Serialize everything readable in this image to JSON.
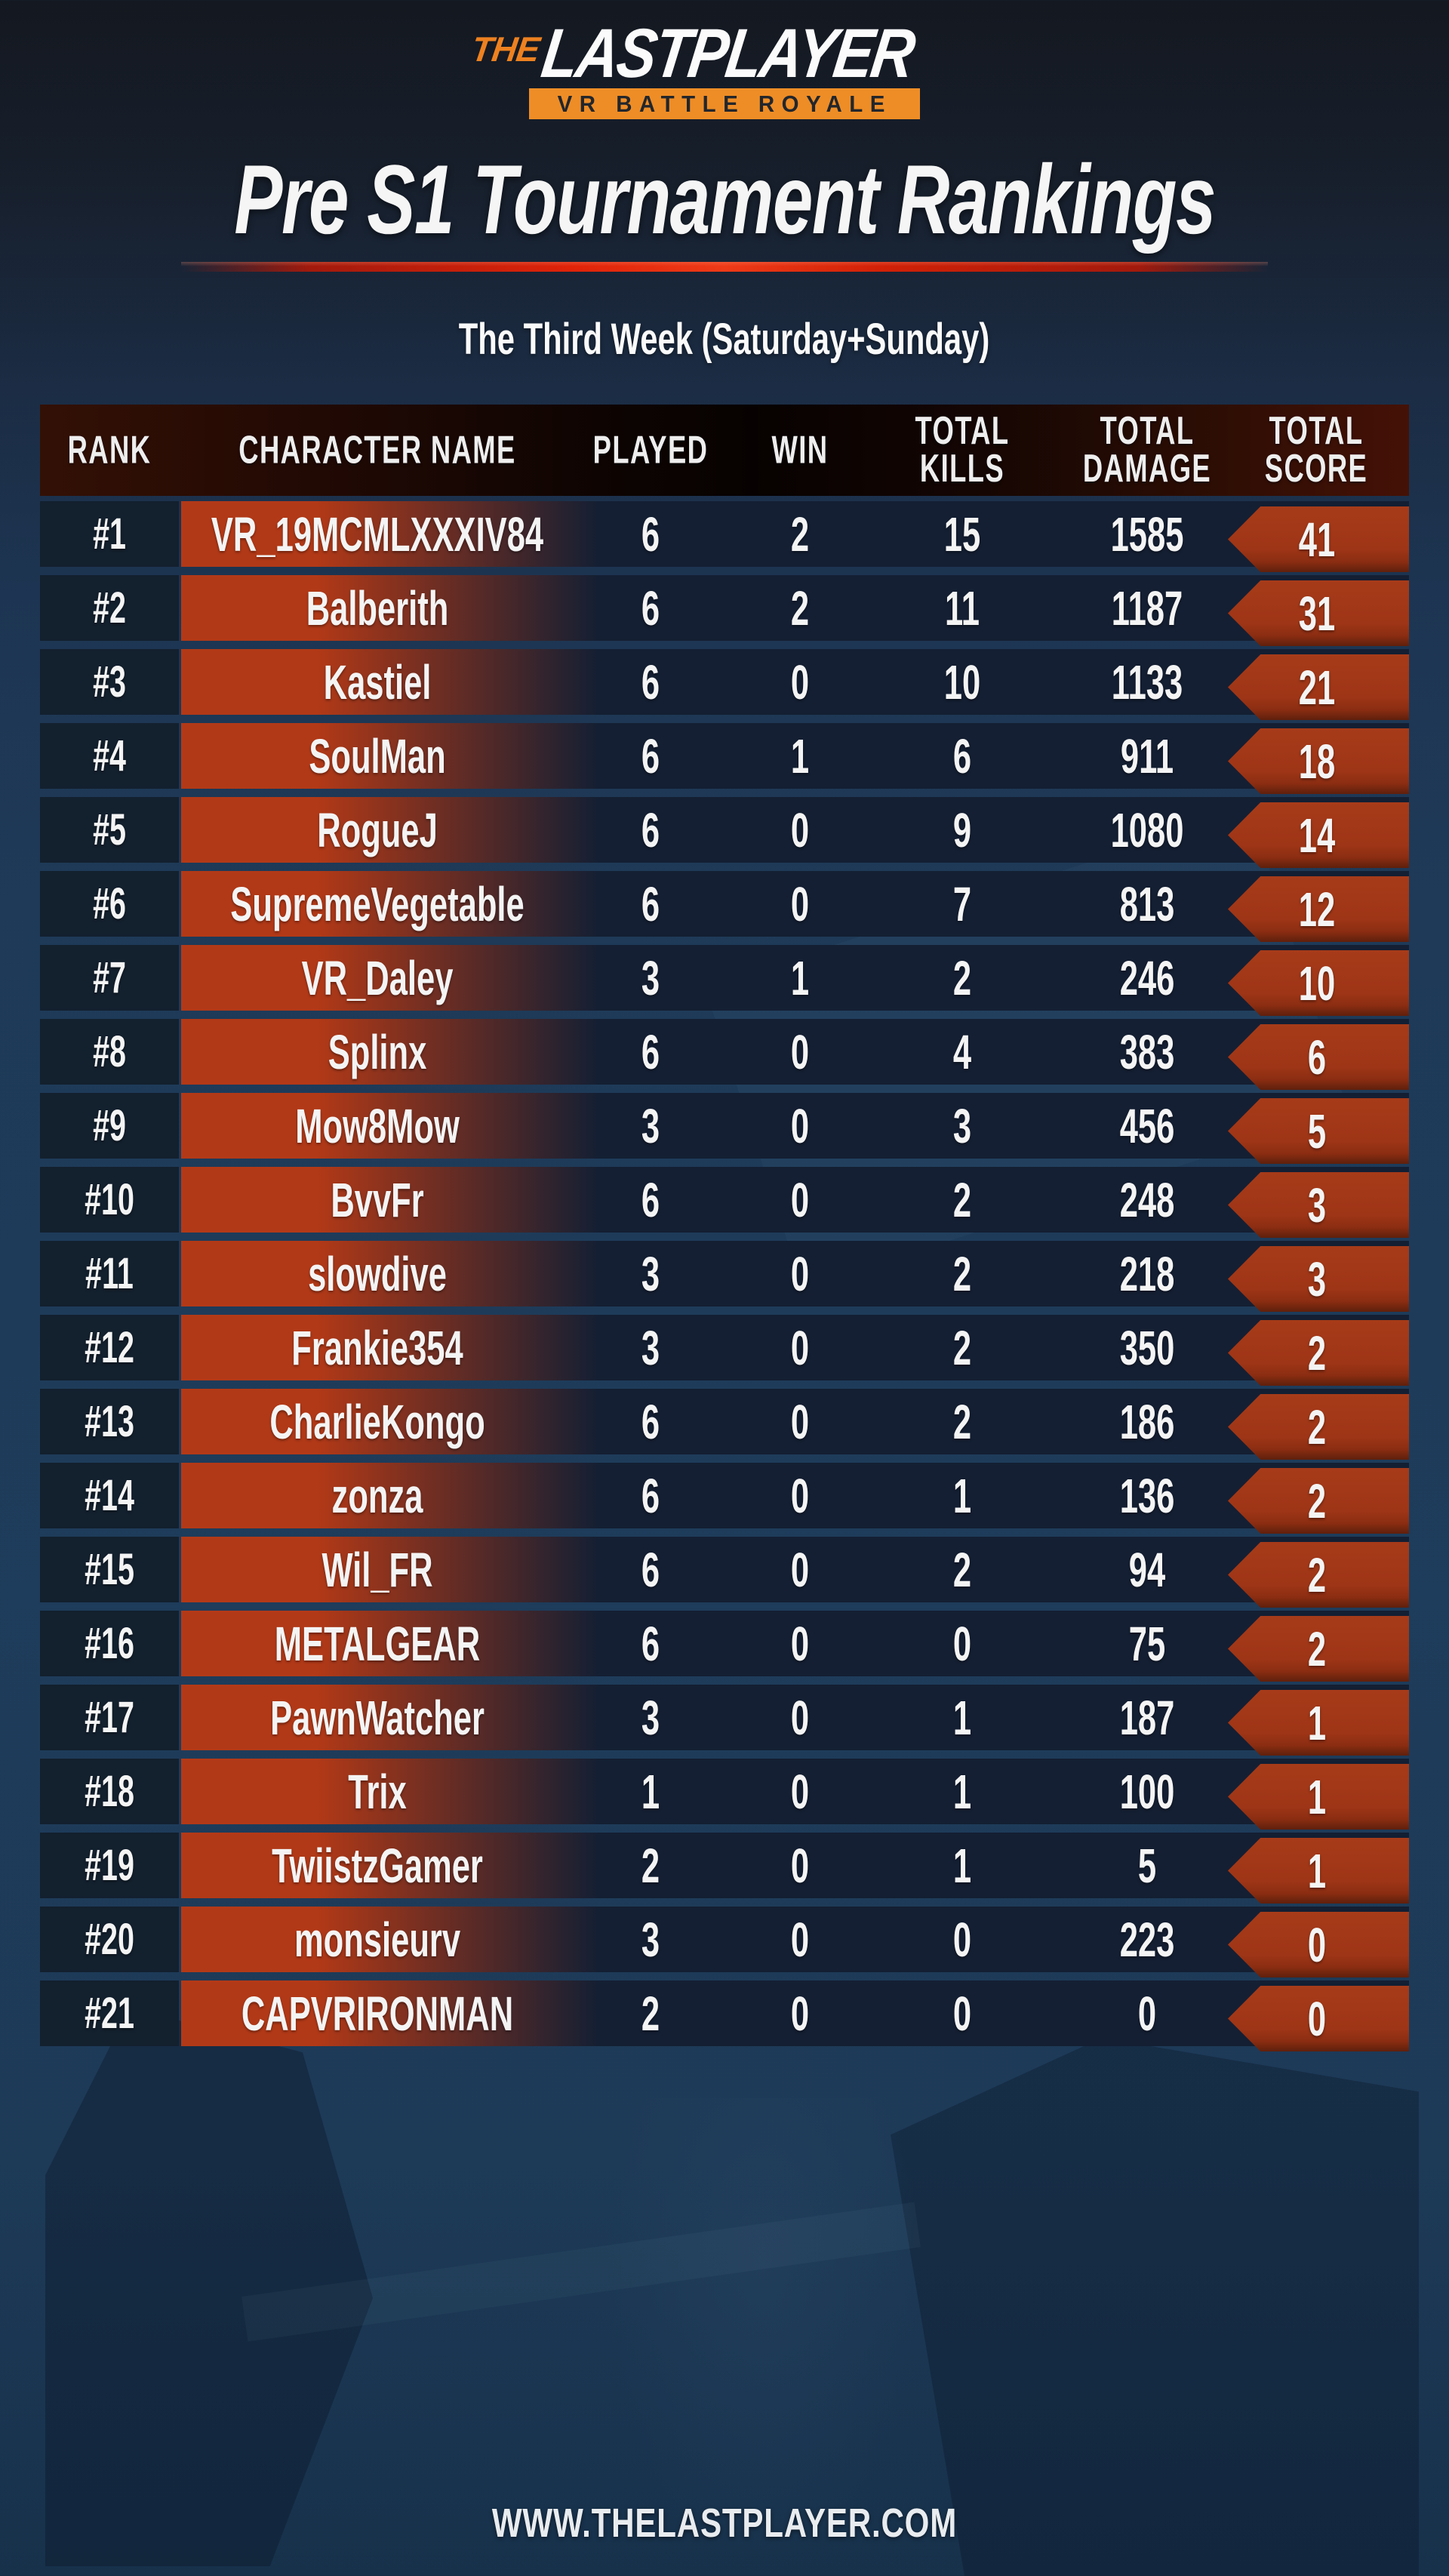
{
  "logo": {
    "the": "THE",
    "last": "LAST",
    "player": "PLAYER",
    "tagline": "VR BATTLE ROYALE"
  },
  "title": "Pre S1 Tournament Rankings",
  "subtitle": "The Third Week (Saturday+Sunday)",
  "footer": {
    "url": "WWW.THELASTPLAYER.COM"
  },
  "colors": {
    "accent_orange": "#ee8d26",
    "logo_the_orange": "#ed8120",
    "name_cell_red": "#b23917",
    "score_badge_red": "#9e3516",
    "divider_red": "#ee3a17",
    "row_navy": "#141f33",
    "rank_navy": "#13202e",
    "page_navy": "#1e3a58",
    "header_maroon": "#331005",
    "text_white": "#f4f4f4"
  },
  "table": {
    "columns": [
      "RANK",
      "CHARACTER NAME",
      "PLAYED",
      "WIN",
      "TOTAL\nKILLS",
      "TOTAL\nDAMAGE",
      "TOTAL\nSCORE"
    ],
    "rows": [
      {
        "rank": "#1",
        "name": "VR_19MCMLXXXIV84",
        "played": 6,
        "win": 2,
        "kills": 15,
        "damage": 1585,
        "score": 41
      },
      {
        "rank": "#2",
        "name": "Balberith",
        "played": 6,
        "win": 2,
        "kills": 11,
        "damage": 1187,
        "score": 31
      },
      {
        "rank": "#3",
        "name": "Kastiel",
        "played": 6,
        "win": 0,
        "kills": 10,
        "damage": 1133,
        "score": 21
      },
      {
        "rank": "#4",
        "name": "SoulMan",
        "played": 6,
        "win": 1,
        "kills": 6,
        "damage": 911,
        "score": 18
      },
      {
        "rank": "#5",
        "name": "RogueJ",
        "played": 6,
        "win": 0,
        "kills": 9,
        "damage": 1080,
        "score": 14
      },
      {
        "rank": "#6",
        "name": "SupremeVegetable",
        "played": 6,
        "win": 0,
        "kills": 7,
        "damage": 813,
        "score": 12
      },
      {
        "rank": "#7",
        "name": "VR_Daley",
        "played": 3,
        "win": 1,
        "kills": 2,
        "damage": 246,
        "score": 10
      },
      {
        "rank": "#8",
        "name": "Splinx",
        "played": 6,
        "win": 0,
        "kills": 4,
        "damage": 383,
        "score": 6
      },
      {
        "rank": "#9",
        "name": "Mow8Mow",
        "played": 3,
        "win": 0,
        "kills": 3,
        "damage": 456,
        "score": 5
      },
      {
        "rank": "#10",
        "name": "BvvFr",
        "played": 6,
        "win": 0,
        "kills": 2,
        "damage": 248,
        "score": 3
      },
      {
        "rank": "#11",
        "name": "slowdive",
        "played": 3,
        "win": 0,
        "kills": 2,
        "damage": 218,
        "score": 3
      },
      {
        "rank": "#12",
        "name": "Frankie354",
        "played": 3,
        "win": 0,
        "kills": 2,
        "damage": 350,
        "score": 2
      },
      {
        "rank": "#13",
        "name": "CharlieKongo",
        "played": 6,
        "win": 0,
        "kills": 2,
        "damage": 186,
        "score": 2
      },
      {
        "rank": "#14",
        "name": "zonza",
        "played": 6,
        "win": 0,
        "kills": 1,
        "damage": 136,
        "score": 2
      },
      {
        "rank": "#15",
        "name": "Wil_FR",
        "played": 6,
        "win": 0,
        "kills": 2,
        "damage": 94,
        "score": 2
      },
      {
        "rank": "#16",
        "name": "METALGEAR",
        "played": 6,
        "win": 0,
        "kills": 0,
        "damage": 75,
        "score": 2
      },
      {
        "rank": "#17",
        "name": "PawnWatcher",
        "played": 3,
        "win": 0,
        "kills": 1,
        "damage": 187,
        "score": 1
      },
      {
        "rank": "#18",
        "name": "Trix",
        "played": 1,
        "win": 0,
        "kills": 1,
        "damage": 100,
        "score": 1
      },
      {
        "rank": "#19",
        "name": "TwiistzGamer",
        "played": 2,
        "win": 0,
        "kills": 1,
        "damage": 5,
        "score": 1
      },
      {
        "rank": "#20",
        "name": "monsieurv",
        "played": 3,
        "win": 0,
        "kills": 0,
        "damage": 223,
        "score": 0
      },
      {
        "rank": "#21",
        "name": "CAPVRIRONMAN",
        "played": 2,
        "win": 0,
        "kills": 0,
        "damage": 0,
        "score": 0
      }
    ]
  }
}
